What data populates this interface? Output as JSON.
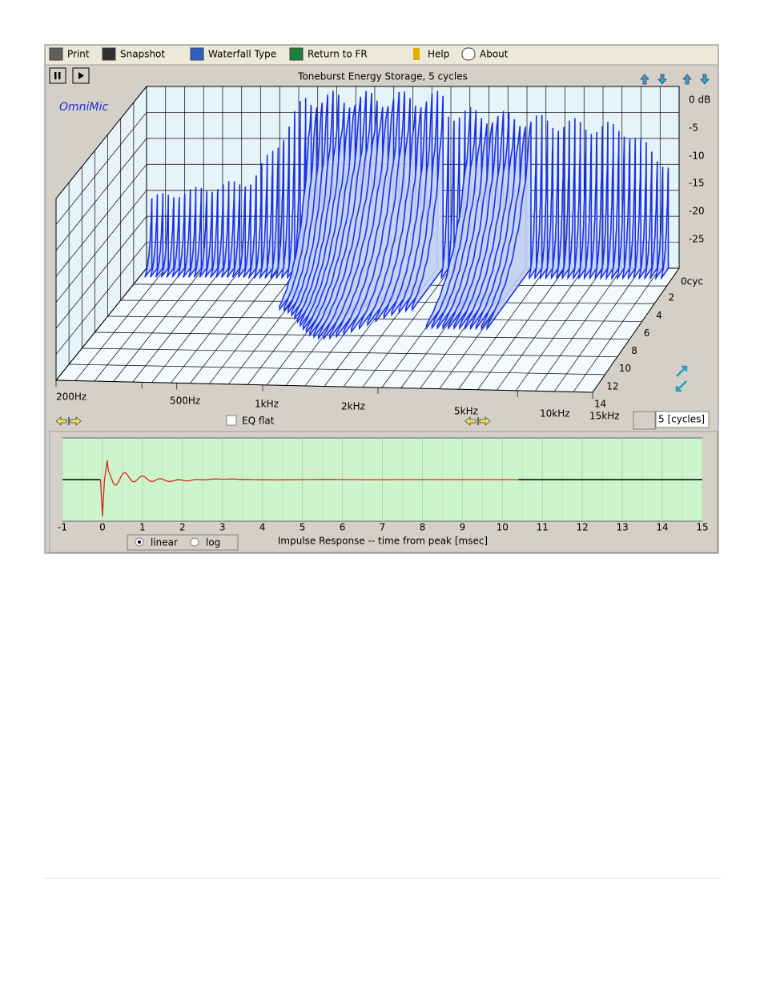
{
  "toolbar": {
    "items": [
      "Print",
      "Snapshot",
      "Waterfall Type",
      "Return to FR",
      "Help",
      "About"
    ]
  },
  "waterfall": {
    "title": "Toneburst Energy Storage, 5 cycles",
    "brand": "OmniMic",
    "db_labels": [
      "0 dB",
      "-5",
      "-10",
      "-15",
      "-20",
      "-25"
    ],
    "cycle_labels": [
      "0cyc",
      "2",
      "4",
      "6",
      "8",
      "10",
      "12",
      "14"
    ],
    "freq_labels": [
      "200Hz",
      "500Hz",
      "1kHz",
      "2kHz",
      "5kHz",
      "10kHz",
      "15kHz"
    ],
    "eq_checkbox": "EQ flat",
    "cycles_input": "5 [cycles]"
  },
  "impulse": {
    "x_labels": [
      "-1",
      "0",
      "1",
      "2",
      "3",
      "4",
      "5",
      "6",
      "7",
      "8",
      "9",
      "10",
      "11",
      "12",
      "13",
      "14",
      "15"
    ],
    "options": [
      "linear",
      "log"
    ],
    "axis_label": "Impulse Response  -- time from peak [msec]"
  }
}
